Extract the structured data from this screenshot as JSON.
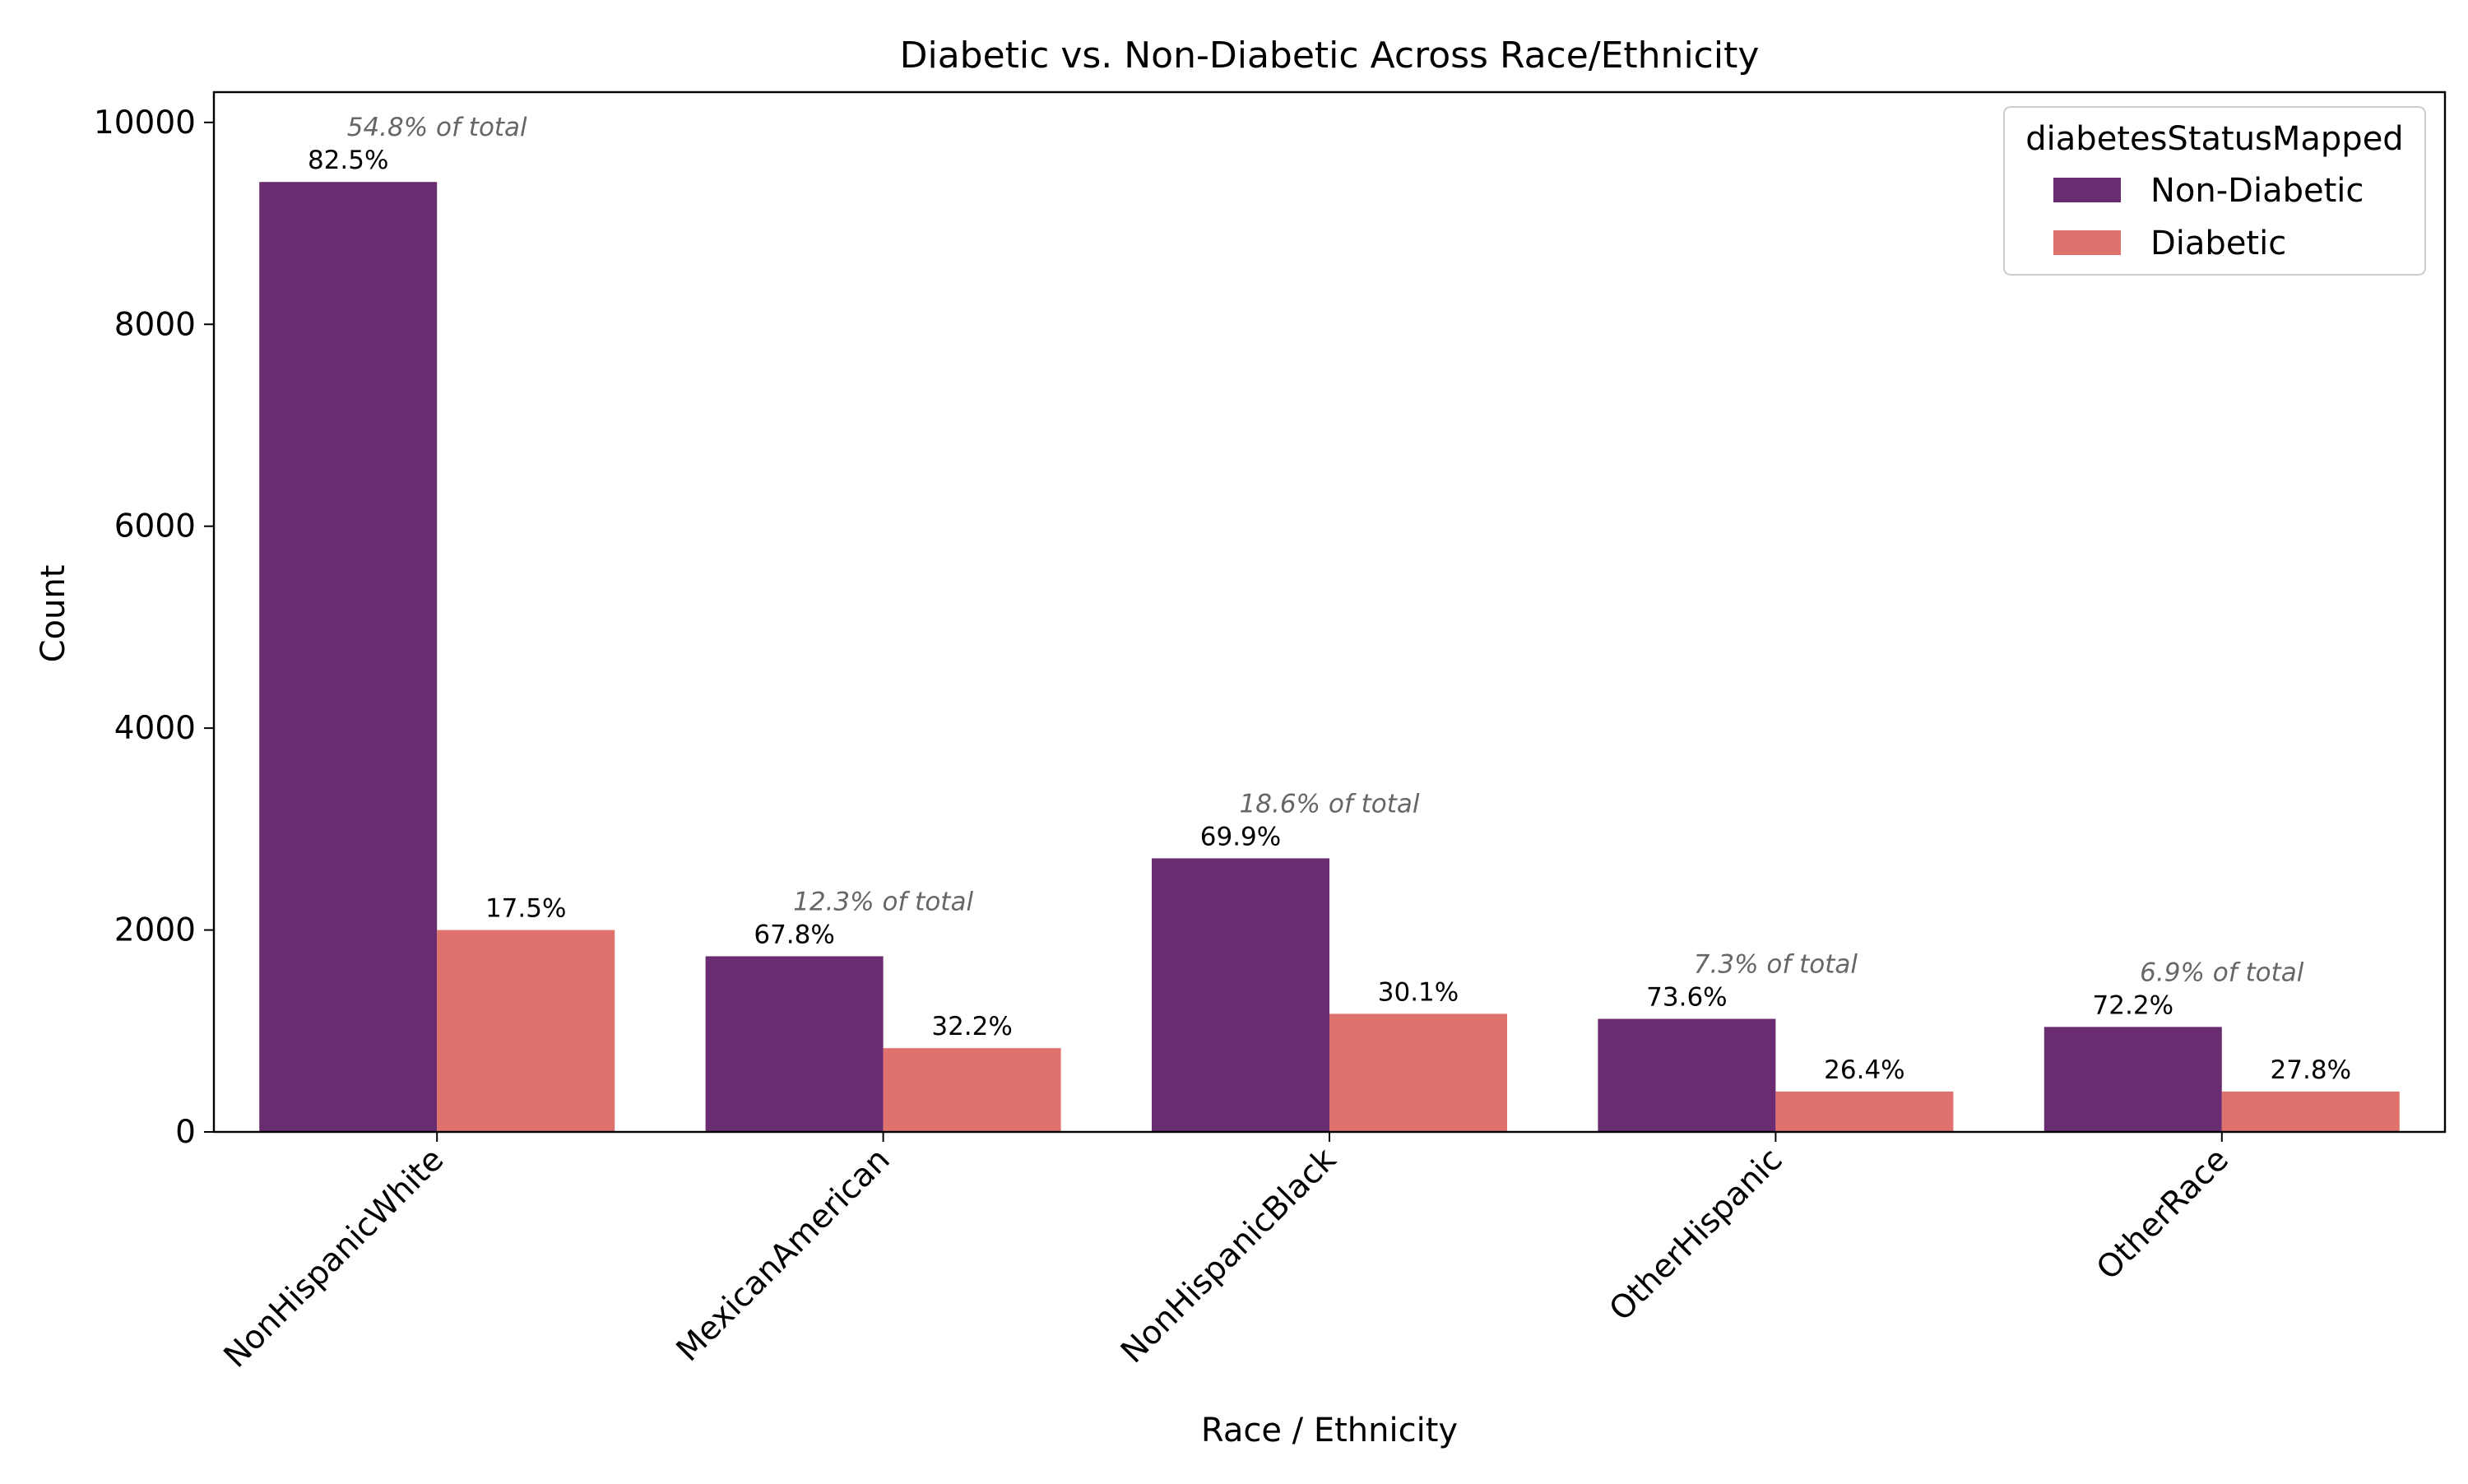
{
  "chart_data": {
    "type": "bar",
    "title": "Diabetic vs. Non-Diabetic Across Race/Ethnicity",
    "xlabel": "Race / Ethnicity",
    "ylabel": "Count",
    "ylim": [
      0,
      10300
    ],
    "yticks": [
      0,
      2000,
      4000,
      6000,
      8000,
      10000
    ],
    "categories": [
      "NonHispanicWhite",
      "MexicanAmerican",
      "NonHispanicBlack",
      "OtherHispanic",
      "OtherRace"
    ],
    "series": [
      {
        "name": "Non-Diabetic",
        "color": "#6a2c70",
        "values": [
          9410,
          1740,
          2710,
          1120,
          1040
        ],
        "labels": [
          "82.5%",
          "67.8%",
          "69.9%",
          "73.6%",
          "72.2%"
        ]
      },
      {
        "name": "Diabetic",
        "color": "#e0726e",
        "values": [
          2000,
          830,
          1170,
          400,
          400
        ],
        "labels": [
          "17.5%",
          "32.2%",
          "30.1%",
          "26.4%",
          "27.8%"
        ]
      }
    ],
    "group_annotations": [
      "54.8% of total",
      "12.3% of total",
      "18.6% of total",
      "7.3% of total",
      "6.9% of total"
    ],
    "legend": {
      "title": "diabetesStatusMapped",
      "position": "top-right"
    },
    "grid": false
  }
}
